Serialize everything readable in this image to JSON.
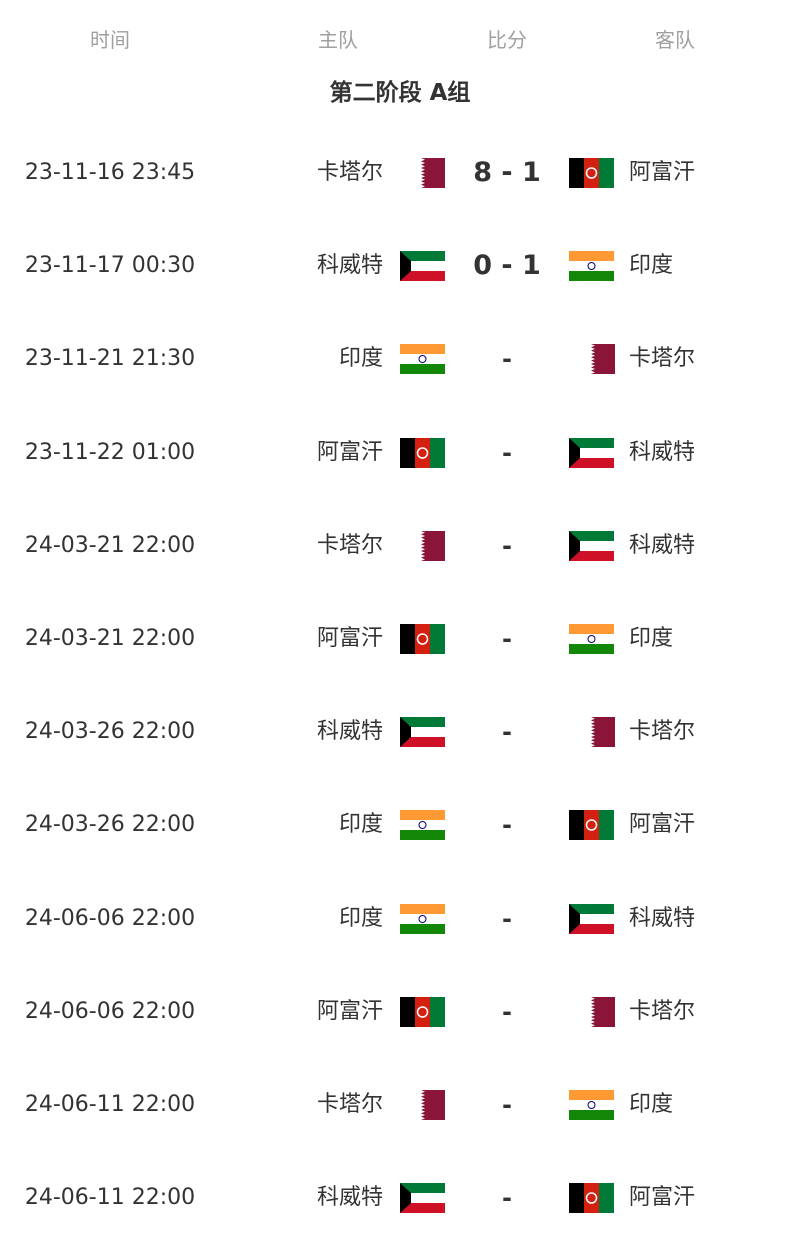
{
  "header": {
    "time": "时间",
    "home": "主队",
    "score": "比分",
    "away": "客队"
  },
  "group_title": "第二阶段 A组",
  "colors": {
    "qatar": "#8a1538",
    "afghanistan_red": "#d32011",
    "green": "#007a36",
    "india_saffron": "#ff9933",
    "india_green": "#138808",
    "kuwait_red": "#ce1126",
    "chakra": "#000080"
  },
  "matches": [
    {
      "time": "23-11-16 23:45",
      "home": "卡塔尔",
      "home_flag": "qatar",
      "score": "8 - 1",
      "away": "阿富汗",
      "away_flag": "afghanistan"
    },
    {
      "time": "23-11-17 00:30",
      "home": "科威特",
      "home_flag": "kuwait",
      "score": "0 - 1",
      "away": "印度",
      "away_flag": "india"
    },
    {
      "time": "23-11-21 21:30",
      "home": "印度",
      "home_flag": "india",
      "score": "-",
      "away": "卡塔尔",
      "away_flag": "qatar"
    },
    {
      "time": "23-11-22 01:00",
      "home": "阿富汗",
      "home_flag": "afghanistan",
      "score": "-",
      "away": "科威特",
      "away_flag": "kuwait"
    },
    {
      "time": "24-03-21 22:00",
      "home": "卡塔尔",
      "home_flag": "qatar",
      "score": "-",
      "away": "科威特",
      "away_flag": "kuwait"
    },
    {
      "time": "24-03-21 22:00",
      "home": "阿富汗",
      "home_flag": "afghanistan",
      "score": "-",
      "away": "印度",
      "away_flag": "india"
    },
    {
      "time": "24-03-26 22:00",
      "home": "科威特",
      "home_flag": "kuwait",
      "score": "-",
      "away": "卡塔尔",
      "away_flag": "qatar"
    },
    {
      "time": "24-03-26 22:00",
      "home": "印度",
      "home_flag": "india",
      "score": "-",
      "away": "阿富汗",
      "away_flag": "afghanistan"
    },
    {
      "time": "24-06-06 22:00",
      "home": "印度",
      "home_flag": "india",
      "score": "-",
      "away": "科威特",
      "away_flag": "kuwait"
    },
    {
      "time": "24-06-06 22:00",
      "home": "阿富汗",
      "home_flag": "afghanistan",
      "score": "-",
      "away": "卡塔尔",
      "away_flag": "qatar"
    },
    {
      "time": "24-06-11 22:00",
      "home": "卡塔尔",
      "home_flag": "qatar",
      "score": "-",
      "away": "印度",
      "away_flag": "india"
    },
    {
      "time": "24-06-11 22:00",
      "home": "科威特",
      "home_flag": "kuwait",
      "score": "-",
      "away": "阿富汗",
      "away_flag": "afghanistan"
    }
  ]
}
